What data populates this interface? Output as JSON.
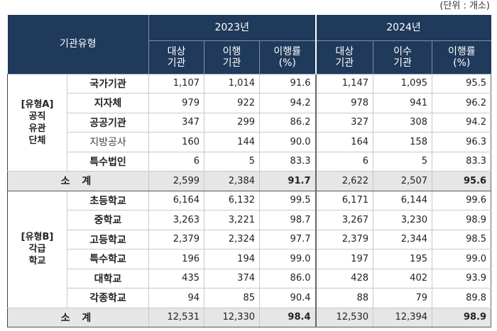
{
  "unit_note": "(단위 : 개소)",
  "header": {
    "corner": "기관유형",
    "years": [
      "2023년",
      "2024년"
    ],
    "cols_2023": [
      [
        "대상",
        "기관"
      ],
      [
        "이행",
        "기관"
      ],
      [
        "이행률",
        "(%)"
      ]
    ],
    "cols_2024": [
      [
        "대상",
        "기관"
      ],
      [
        "이수",
        "기관"
      ],
      [
        "이행률",
        "(%)"
      ]
    ]
  },
  "groupA": {
    "label_lines": [
      "[유형A]",
      "공직",
      "유관",
      "단체"
    ],
    "rows": [
      {
        "name": "국가기관",
        "v": [
          "1,107",
          "1,014",
          "91.6",
          "1,147",
          "1,095",
          "95.5"
        ]
      },
      {
        "name": "지자체",
        "v": [
          "979",
          "922",
          "94.2",
          "978",
          "941",
          "96.2"
        ]
      },
      {
        "name": "공공기관",
        "v": [
          "347",
          "299",
          "86.2",
          "327",
          "308",
          "94.2"
        ]
      },
      {
        "name": "지방공사",
        "v": [
          "160",
          "144",
          "90.0",
          "164",
          "158",
          "96.3"
        ]
      },
      {
        "name": "특수법인",
        "v": [
          "6",
          "5",
          "83.3",
          "6",
          "5",
          "83.3"
        ]
      }
    ],
    "subtotal": {
      "label": "소 계",
      "v": [
        "2,599",
        "2,384",
        "91.7",
        "2,622",
        "2,507",
        "95.6"
      ]
    }
  },
  "groupB": {
    "label_lines": [
      "[유형B]",
      "각급",
      "학교"
    ],
    "rows": [
      {
        "name": "초등학교",
        "v": [
          "6,164",
          "6,132",
          "99.5",
          "6,171",
          "6,144",
          "99.6"
        ]
      },
      {
        "name": "중학교",
        "v": [
          "3,263",
          "3,221",
          "98.7",
          "3,267",
          "3,230",
          "98.9"
        ]
      },
      {
        "name": "고등학교",
        "v": [
          "2,379",
          "2,324",
          "97.7",
          "2,379",
          "2,344",
          "98.5"
        ]
      },
      {
        "name": "특수학교",
        "v": [
          "196",
          "194",
          "99.0",
          "197",
          "195",
          "99.0"
        ]
      },
      {
        "name": "대학교",
        "v": [
          "435",
          "374",
          "86.0",
          "428",
          "402",
          "93.9"
        ]
      },
      {
        "name": "각종학교",
        "v": [
          "94",
          "85",
          "90.4",
          "88",
          "79",
          "89.8"
        ]
      }
    ],
    "subtotal": {
      "label": "소 계",
      "v": [
        "12,531",
        "12,330",
        "98.4",
        "12,530",
        "12,394",
        "98.9"
      ]
    }
  }
}
